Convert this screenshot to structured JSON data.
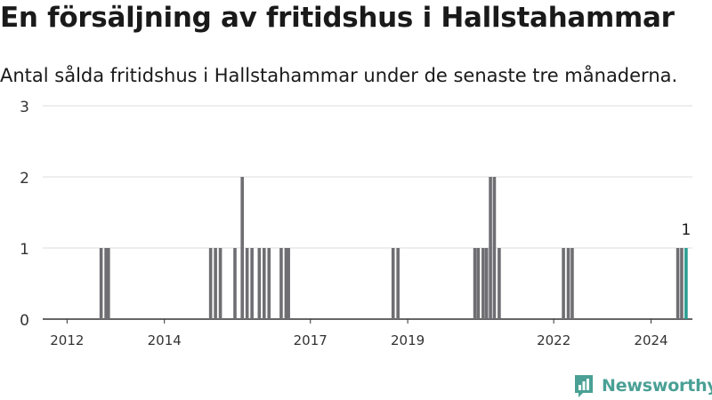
{
  "header": {
    "title": "En försäljning av fritidshus i Hallstahammar",
    "subtitle": "Antal sålda fritidshus i Hallstahammar under de senaste tre månaderna."
  },
  "branding": {
    "name": "Newsworthy",
    "color": "#4aa095",
    "icon": "bar-chart-speech-bubble-icon"
  },
  "chart_data": {
    "type": "bar",
    "x_start_year": 2011.5,
    "x_end_year": 2024.85,
    "ylim": [
      0,
      3
    ],
    "y_ticks": [
      0,
      1,
      2,
      3
    ],
    "x_ticks": [
      "2012",
      "2014",
      "2017",
      "2019",
      "2022",
      "2024"
    ],
    "x_tick_years": [
      2012,
      2014,
      2017,
      2019,
      2022,
      2024
    ],
    "grid": true,
    "bar_color": "#6e6e73",
    "highlight_color": "#2b9d90",
    "highlight_label": "1",
    "bars": [
      {
        "x": 2012.7,
        "value": 1
      },
      {
        "x": 2012.8,
        "value": 1
      },
      {
        "x": 2012.85,
        "value": 1
      },
      {
        "x": 2014.95,
        "value": 1
      },
      {
        "x": 2015.05,
        "value": 1
      },
      {
        "x": 2015.15,
        "value": 1
      },
      {
        "x": 2015.45,
        "value": 1
      },
      {
        "x": 2015.6,
        "value": 2
      },
      {
        "x": 2015.7,
        "value": 1
      },
      {
        "x": 2015.8,
        "value": 1
      },
      {
        "x": 2015.95,
        "value": 1
      },
      {
        "x": 2016.05,
        "value": 1
      },
      {
        "x": 2016.15,
        "value": 1
      },
      {
        "x": 2016.4,
        "value": 1
      },
      {
        "x": 2016.5,
        "value": 1
      },
      {
        "x": 2016.55,
        "value": 1
      },
      {
        "x": 2018.7,
        "value": 1
      },
      {
        "x": 2018.8,
        "value": 1
      },
      {
        "x": 2020.38,
        "value": 1
      },
      {
        "x": 2020.45,
        "value": 1
      },
      {
        "x": 2020.55,
        "value": 1
      },
      {
        "x": 2020.62,
        "value": 1
      },
      {
        "x": 2020.7,
        "value": 2
      },
      {
        "x": 2020.78,
        "value": 2
      },
      {
        "x": 2020.88,
        "value": 1
      },
      {
        "x": 2022.2,
        "value": 1
      },
      {
        "x": 2022.3,
        "value": 1
      },
      {
        "x": 2022.38,
        "value": 1
      },
      {
        "x": 2024.55,
        "value": 1
      },
      {
        "x": 2024.63,
        "value": 1
      },
      {
        "x": 2024.72,
        "value": 1,
        "highlight": true
      }
    ]
  }
}
